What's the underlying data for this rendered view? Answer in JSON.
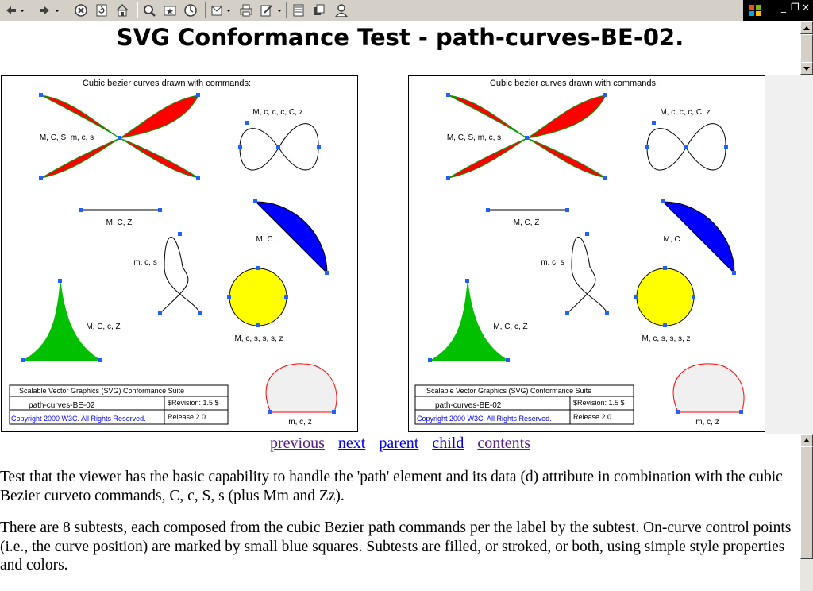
{
  "toolbar": {
    "buttons": [
      "back-icon",
      "back-dropdown-icon",
      "forward-icon",
      "forward-dropdown-icon",
      "stop-icon",
      "refresh-icon",
      "home-icon",
      "search-icon",
      "favorites-icon",
      "history-icon",
      "mail-icon",
      "print-icon",
      "edit-icon",
      "edit-dropdown-icon",
      "discuss-icon",
      "messenger-icon",
      "user-icon"
    ]
  },
  "window_controls": {
    "minimize": "_",
    "restore": "❐",
    "close": "×"
  },
  "page": {
    "title": "SVG Conformance Test - path-curves-BE-02."
  },
  "svg_test": {
    "heading": "Cubic bezier curves drawn with commands:",
    "labels": {
      "hourglass": "M, C, S, m, c, s",
      "infinity": "M, c, c, c, C, z",
      "line": "M, C, Z",
      "quarter": "M, C",
      "loop": "m, c, s",
      "circle": "M, c, s, s, s, z",
      "spike": "M, C, c, Z",
      "arch": "m, c, z"
    },
    "legend": {
      "suite": "Scalable Vector Graphics (SVG) Conformance Suite",
      "test_name": "path-curves-BE-02",
      "revision": "$Revision: 1.5 $",
      "copyright": "Copyright 2000 W3C. All Rights Reserved.",
      "release": "Release 2.0"
    },
    "colors": {
      "red": "#ff0000",
      "blue": "#0000ff",
      "yellow": "#ffff00",
      "green": "#00c000",
      "control_point": "#2060ff",
      "arch_fill": "#f0f0f0"
    }
  },
  "nav": {
    "previous": "previous",
    "next": "next",
    "parent": "parent",
    "child": "child",
    "contents": "contents"
  },
  "description": {
    "p1": "Test that the viewer has the basic capability to handle the 'path' element and its data (d) attribute in combination with the cubic Bezier curveto commands, C, c, S, s (plus Mm and Zz).",
    "p2": "There are 8 subtests, each composed from the cubic Bezier path commands per the label by the subtest. On-curve control points (i.e., the curve position) are marked by small blue squares. Subtests are filled, or stroked, or both, using simple style properties and colors."
  }
}
